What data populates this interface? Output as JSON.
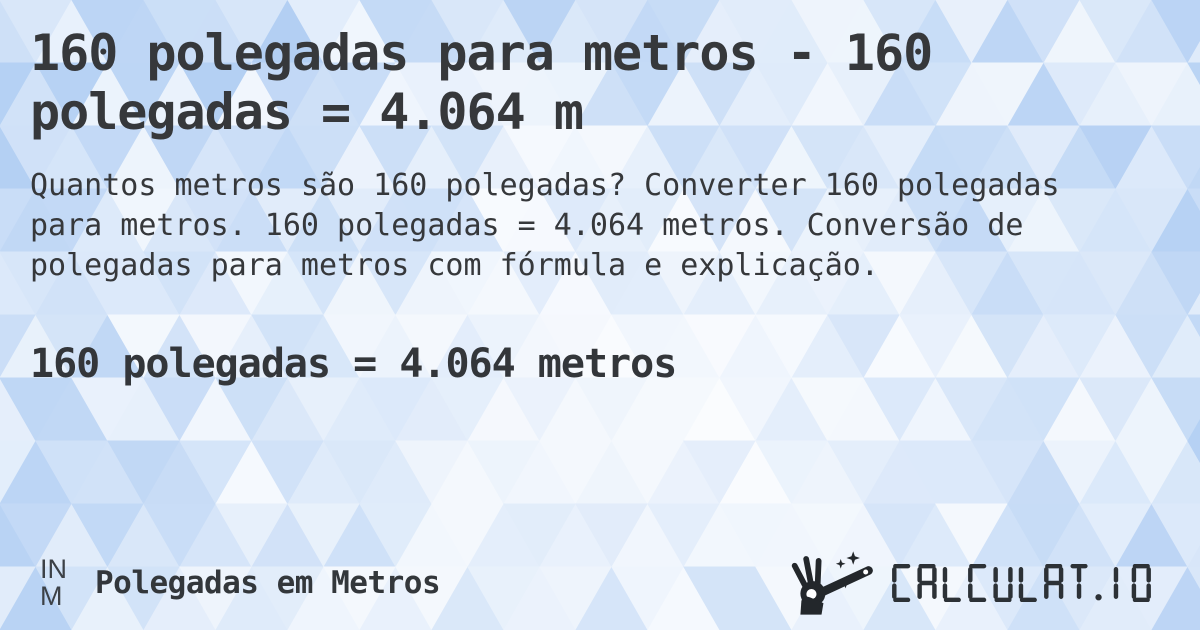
{
  "page": {
    "title": "160 polegadas para metros - 160 polegadas = 4.064 m",
    "description": "Quantos metros são 160 polegadas? Converter 160 polegadas para metros. 160 polegadas = 4.064 metros. Conversão de polegadas para metros com fórmula e explicação.",
    "result": "160 polegadas = 4.064 metros"
  },
  "footer": {
    "unit_badge": {
      "from": "IN",
      "to": "M"
    },
    "category_label": "Polegadas em Metros",
    "logo": {
      "brand": "CALCULAT.IO",
      "icon": "magic-wand-hand-icon"
    }
  },
  "colors": {
    "text_dark": "#36383b",
    "logo_dark": "#2c3136",
    "background_blue": "#9ec2f0",
    "background_light": "#ffffff"
  }
}
